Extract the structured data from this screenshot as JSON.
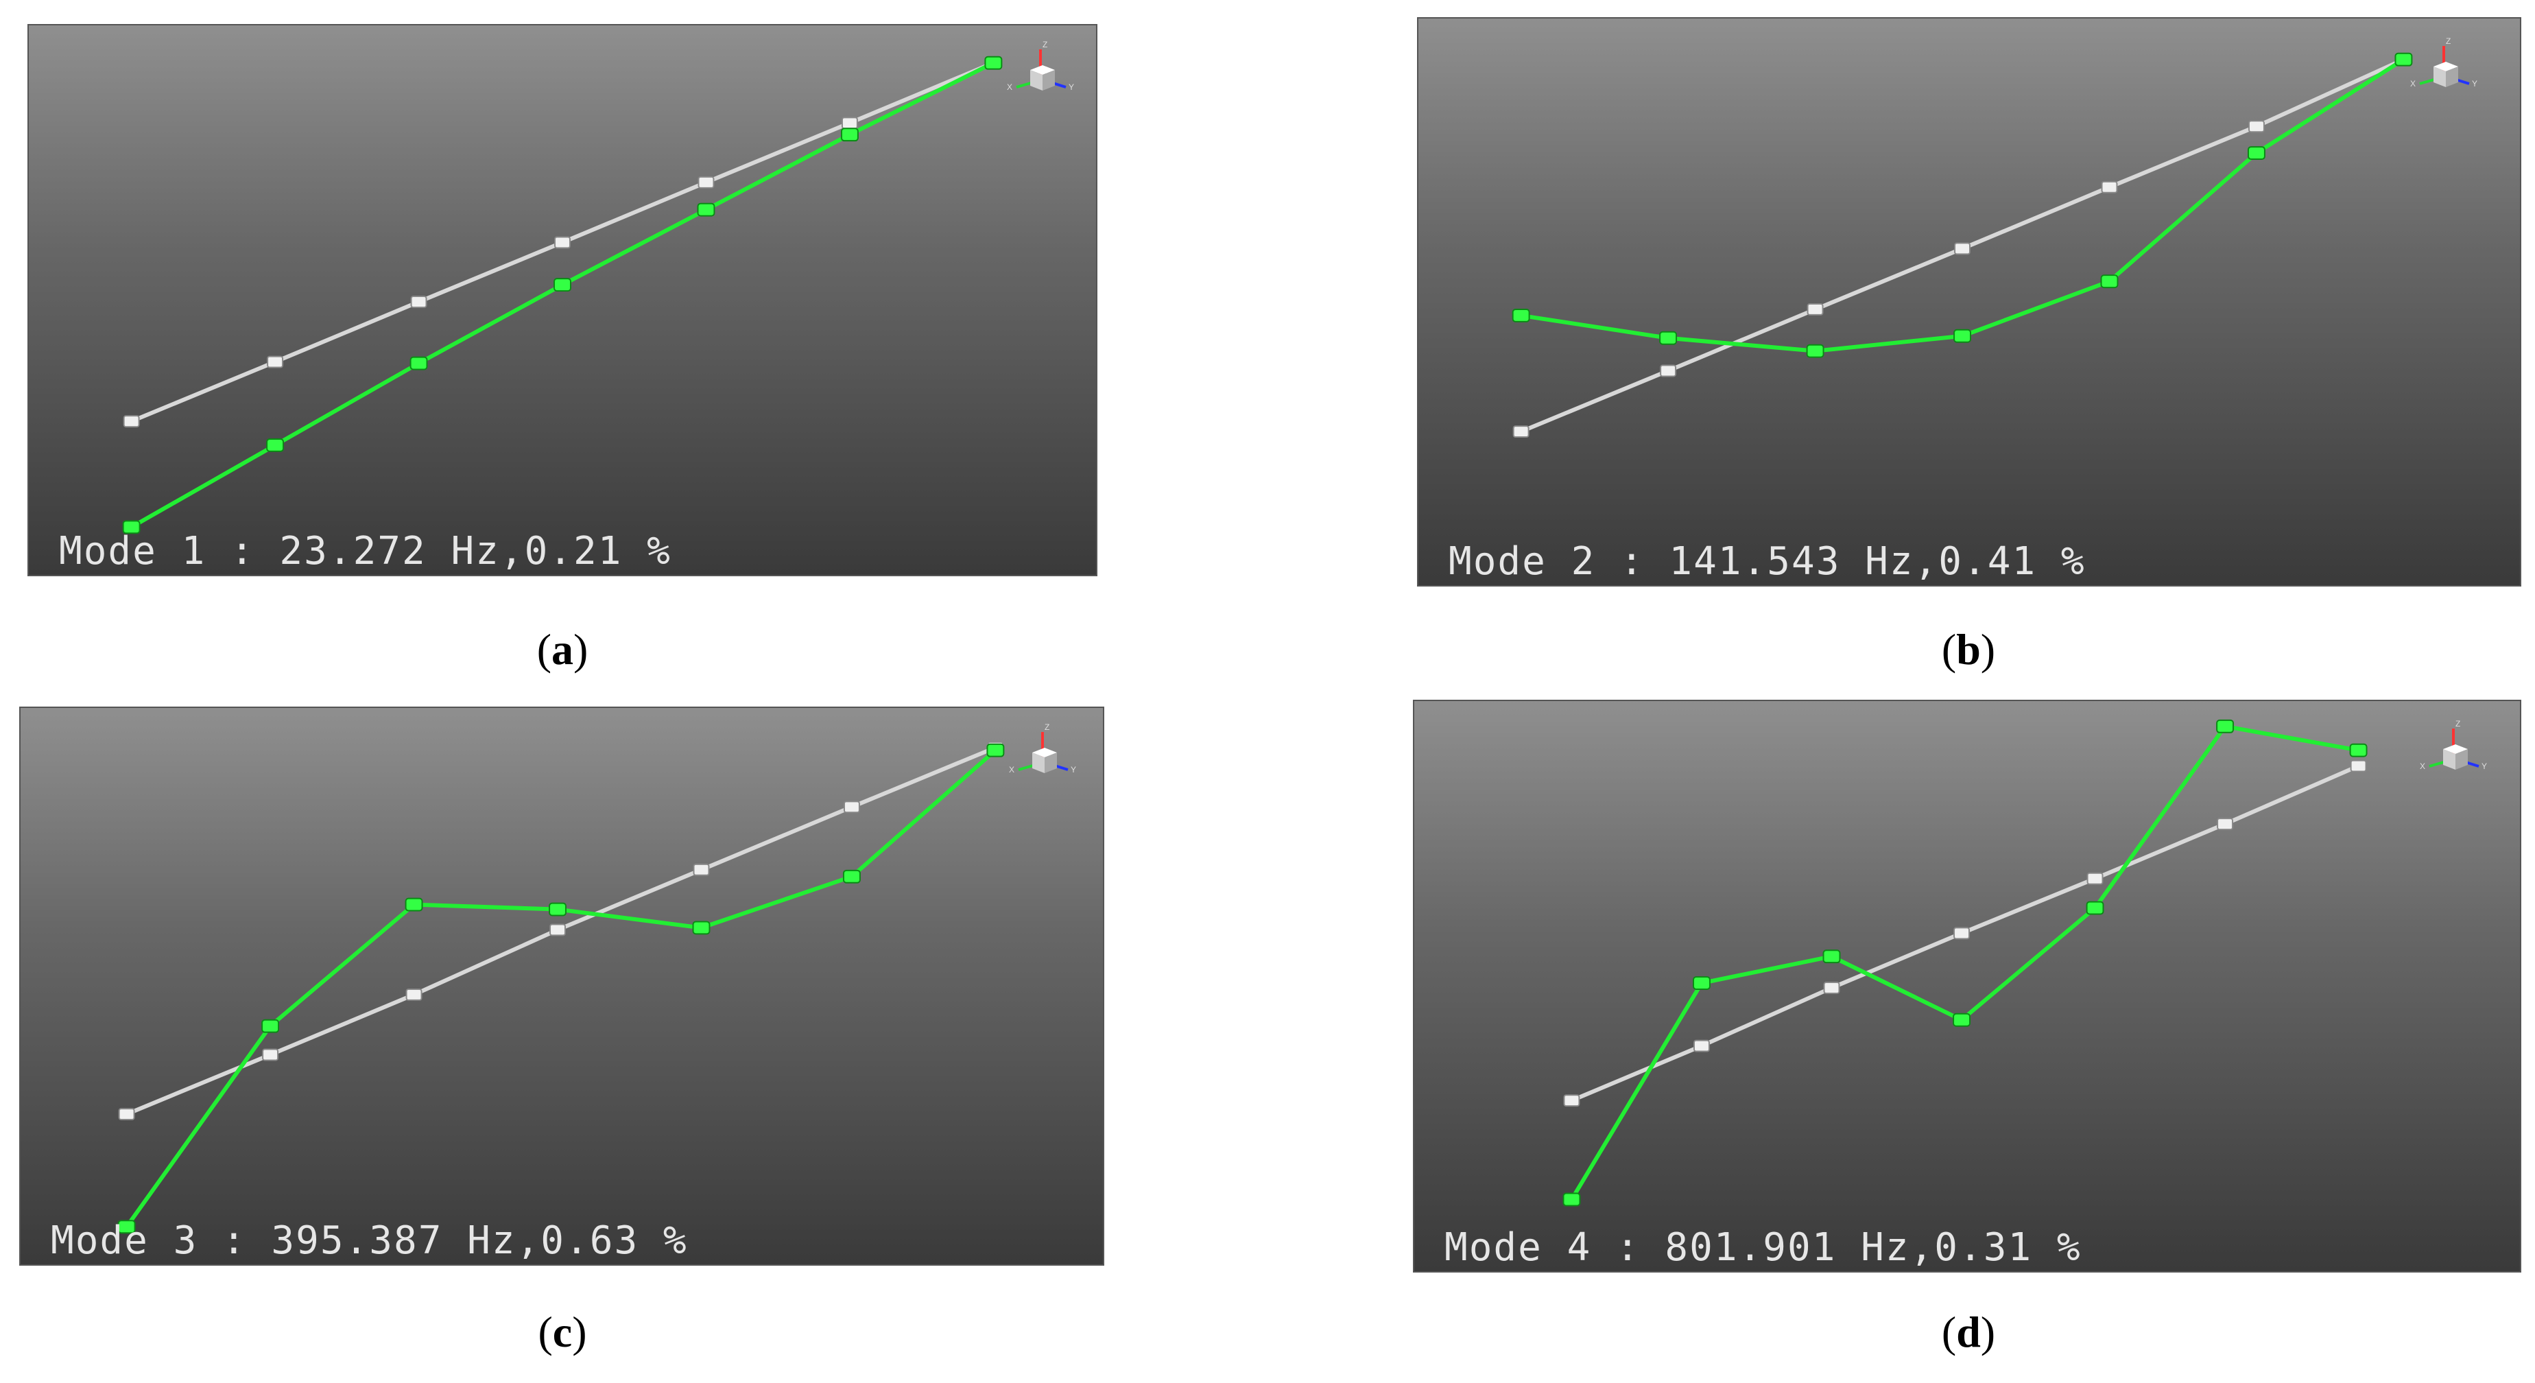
{
  "panels": [
    {
      "id": "a",
      "caption_letter": "a",
      "mode_label": "Mode 1 : 23.272 Hz,0.21 %",
      "undeformed": [
        [
          150,
          580
        ],
        [
          360,
          493
        ],
        [
          570,
          405
        ],
        [
          780,
          318
        ],
        [
          990,
          230
        ],
        [
          1200,
          143
        ],
        [
          1410,
          55
        ]
      ],
      "deformed": [
        [
          150,
          735
        ],
        [
          360,
          615
        ],
        [
          570,
          495
        ],
        [
          780,
          380
        ],
        [
          990,
          270
        ],
        [
          1200,
          160
        ],
        [
          1410,
          55
        ]
      ]
    },
    {
      "id": "b",
      "caption_letter": "b",
      "mode_label": "Mode 2 : 141.543 Hz,0.41 %",
      "undeformed": [
        [
          150,
          605
        ],
        [
          365,
          516
        ],
        [
          580,
          426
        ],
        [
          795,
          337
        ],
        [
          1010,
          247
        ],
        [
          1225,
          158
        ],
        [
          1440,
          60
        ]
      ],
      "deformed": [
        [
          150,
          435
        ],
        [
          365,
          468
        ],
        [
          580,
          487
        ],
        [
          795,
          465
        ],
        [
          1010,
          385
        ],
        [
          1225,
          197
        ],
        [
          1440,
          60
        ]
      ]
    },
    {
      "id": "c",
      "caption_letter": "c",
      "mode_label": "Mode 3 : 395.387 Hz,0.63 %",
      "undeformed": [
        [
          155,
          595
        ],
        [
          365,
          508
        ],
        [
          575,
          420
        ],
        [
          785,
          325
        ],
        [
          995,
          237
        ],
        [
          1215,
          145
        ],
        [
          1425,
          58
        ]
      ],
      "deformed": [
        [
          155,
          760
        ],
        [
          365,
          466
        ],
        [
          575,
          288
        ],
        [
          785,
          295
        ],
        [
          995,
          322
        ],
        [
          1215,
          247
        ],
        [
          1425,
          62
        ]
      ]
    },
    {
      "id": "d",
      "caption_letter": "d",
      "mode_label": "Mode 4 : 801.901 Hz,0.31 %",
      "undeformed": [
        [
          230,
          585
        ],
        [
          420,
          505
        ],
        [
          610,
          420
        ],
        [
          800,
          340
        ],
        [
          995,
          260
        ],
        [
          1185,
          180
        ],
        [
          1380,
          95
        ]
      ],
      "deformed": [
        [
          230,
          730
        ],
        [
          420,
          413
        ],
        [
          610,
          374
        ],
        [
          800,
          467
        ],
        [
          995,
          303
        ],
        [
          1185,
          37
        ],
        [
          1380,
          72
        ]
      ]
    }
  ],
  "axes_triad": {
    "z_label": "Z",
    "x_label": "X",
    "y_label": "Y"
  },
  "colors": {
    "undeformed": "#d8d8d8",
    "deformed": "#22ee33",
    "label": "#e6e6e6"
  }
}
